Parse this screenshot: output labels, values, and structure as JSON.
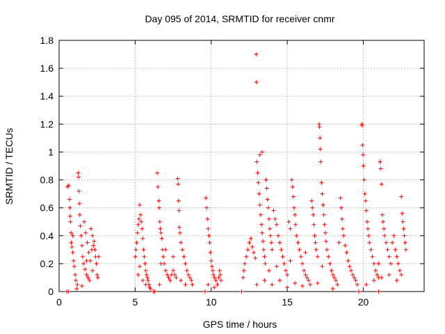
{
  "chart_data": {
    "type": "scatter",
    "title": "Day 095 of 2014, SRMTID for receiver cnmr",
    "xlabel": "GPS time / hours",
    "ylabel": "SRMTID / TECUs",
    "xlim": [
      0,
      24
    ],
    "ylim": [
      0,
      1.8
    ],
    "xticks": [
      0,
      5,
      10,
      15,
      20
    ],
    "xtick_labels": [
      "0",
      "5",
      "10",
      "15",
      "20"
    ],
    "yticks": [
      0,
      0.2,
      0.4,
      0.6,
      0.8,
      1,
      1.2,
      1.4,
      1.6,
      1.8
    ],
    "ytick_labels": [
      "0",
      "0.2",
      "0.4",
      "0.6",
      "0.8",
      "1",
      "1.2",
      "1.4",
      "1.6",
      "1.8"
    ],
    "grid": true,
    "marker": "plus",
    "series": [
      {
        "name": "SRMTID",
        "color": "#ff0000",
        "points": [
          [
            0.55,
            0.75
          ],
          [
            0.62,
            0.76
          ],
          [
            0.68,
            0.66
          ],
          [
            0.7,
            0.6
          ],
          [
            0.72,
            0.54
          ],
          [
            0.75,
            0.5
          ],
          [
            0.78,
            0.42
          ],
          [
            0.8,
            0.35
          ],
          [
            0.85,
            0.32
          ],
          [
            0.9,
            0.28
          ],
          [
            0.95,
            0.22
          ],
          [
            1.0,
            0.18
          ],
          [
            1.05,
            0.12
          ],
          [
            1.1,
            0.08
          ],
          [
            1.2,
            0.05
          ],
          [
            1.25,
            0.85
          ],
          [
            1.28,
            0.82
          ],
          [
            1.3,
            0.72
          ],
          [
            1.33,
            0.63
          ],
          [
            1.36,
            0.55
          ],
          [
            1.4,
            0.47
          ],
          [
            1.45,
            0.4
          ],
          [
            1.5,
            0.33
          ],
          [
            1.55,
            0.25
          ],
          [
            1.6,
            0.2
          ],
          [
            1.7,
            0.16
          ],
          [
            1.8,
            0.12
          ],
          [
            1.9,
            0.1
          ],
          [
            2.0,
            0.08
          ],
          [
            1.65,
            0.5
          ],
          [
            1.75,
            0.42
          ],
          [
            1.85,
            0.35
          ],
          [
            1.95,
            0.28
          ],
          [
            2.05,
            0.22
          ],
          [
            2.15,
            0.3
          ],
          [
            2.25,
            0.33
          ],
          [
            2.35,
            0.3
          ],
          [
            2.4,
            0.25
          ],
          [
            2.45,
            0.2
          ],
          [
            2.5,
            0.12
          ],
          [
            2.55,
            0.1
          ],
          [
            2.1,
            0.45
          ],
          [
            2.2,
            0.4
          ],
          [
            2.3,
            0.36
          ],
          [
            1.15,
            0.02
          ],
          [
            1.5,
            0.04
          ],
          [
            2.6,
            0.25
          ],
          [
            2.2,
            0.15
          ],
          [
            1.8,
            0.22
          ],
          [
            0.9,
            0.4
          ],
          [
            5.0,
            0.25
          ],
          [
            5.05,
            0.3
          ],
          [
            5.1,
            0.35
          ],
          [
            5.15,
            0.42
          ],
          [
            5.2,
            0.48
          ],
          [
            5.25,
            0.52
          ],
          [
            5.3,
            0.62
          ],
          [
            5.35,
            0.55
          ],
          [
            5.4,
            0.5
          ],
          [
            5.45,
            0.45
          ],
          [
            5.5,
            0.38
          ],
          [
            5.55,
            0.3
          ],
          [
            5.6,
            0.25
          ],
          [
            5.65,
            0.2
          ],
          [
            5.7,
            0.15
          ],
          [
            5.75,
            0.12
          ],
          [
            5.8,
            0.1
          ],
          [
            5.85,
            0.08
          ],
          [
            5.9,
            0.05
          ],
          [
            5.95,
            0.03
          ],
          [
            6.0,
            0.02
          ],
          [
            5.2,
            0.12
          ],
          [
            5.3,
            0.18
          ],
          [
            5.5,
            0.08
          ],
          [
            5.7,
            0.05
          ],
          [
            6.45,
            0.85
          ],
          [
            6.5,
            0.75
          ],
          [
            6.55,
            0.65
          ],
          [
            6.58,
            0.6
          ],
          [
            6.62,
            0.5
          ],
          [
            6.65,
            0.45
          ],
          [
            6.7,
            0.42
          ],
          [
            6.75,
            0.38
          ],
          [
            6.8,
            0.3
          ],
          [
            6.85,
            0.25
          ],
          [
            6.9,
            0.2
          ],
          [
            7.0,
            0.15
          ],
          [
            7.1,
            0.12
          ],
          [
            7.2,
            0.1
          ],
          [
            7.3,
            0.08
          ],
          [
            7.4,
            0.12
          ],
          [
            7.5,
            0.15
          ],
          [
            7.6,
            0.12
          ],
          [
            7.7,
            0.1
          ],
          [
            7.8,
            0.81
          ],
          [
            7.82,
            0.77
          ],
          [
            7.85,
            0.65
          ],
          [
            7.88,
            0.58
          ],
          [
            7.9,
            0.46
          ],
          [
            7.95,
            0.42
          ],
          [
            8.0,
            0.35
          ],
          [
            8.1,
            0.3
          ],
          [
            8.2,
            0.25
          ],
          [
            8.3,
            0.2
          ],
          [
            8.4,
            0.15
          ],
          [
            8.5,
            0.12
          ],
          [
            8.6,
            0.1
          ],
          [
            8.7,
            0.08
          ],
          [
            8.75,
            0.05
          ],
          [
            6.6,
            0.05
          ],
          [
            7.0,
            0.3
          ],
          [
            7.5,
            0.25
          ],
          [
            8.0,
            0.08
          ],
          [
            8.3,
            0.05
          ],
          [
            6.7,
            0.2
          ],
          [
            9.65,
            0.67
          ],
          [
            9.7,
            0.6
          ],
          [
            9.75,
            0.52
          ],
          [
            9.8,
            0.45
          ],
          [
            9.85,
            0.4
          ],
          [
            9.9,
            0.35
          ],
          [
            9.95,
            0.28
          ],
          [
            10.0,
            0.22
          ],
          [
            10.05,
            0.18
          ],
          [
            10.1,
            0.15
          ],
          [
            10.15,
            0.12
          ],
          [
            10.2,
            0.1
          ],
          [
            10.3,
            0.08
          ],
          [
            10.4,
            0.05
          ],
          [
            10.5,
            0.1
          ],
          [
            10.55,
            0.15
          ],
          [
            10.6,
            0.12
          ],
          [
            10.65,
            0.08
          ],
          [
            9.8,
            0.05
          ],
          [
            10.2,
            0.03
          ],
          [
            12.1,
            0.1
          ],
          [
            12.15,
            0.15
          ],
          [
            12.2,
            0.2
          ],
          [
            12.3,
            0.25
          ],
          [
            12.4,
            0.3
          ],
          [
            12.5,
            0.35
          ],
          [
            12.6,
            0.38
          ],
          [
            12.7,
            0.32
          ],
          [
            12.8,
            0.28
          ],
          [
            12.9,
            0.24
          ],
          [
            12.95,
            1.7
          ],
          [
            12.97,
            1.5
          ],
          [
            13.0,
            0.93
          ],
          [
            13.05,
            0.85
          ],
          [
            13.1,
            0.78
          ],
          [
            13.15,
            0.7
          ],
          [
            13.2,
            0.62
          ],
          [
            13.25,
            0.55
          ],
          [
            13.3,
            0.48
          ],
          [
            13.35,
            0.42
          ],
          [
            13.2,
            0.98
          ],
          [
            13.35,
            1.0
          ],
          [
            13.4,
            0.36
          ],
          [
            13.45,
            0.3
          ],
          [
            13.5,
            0.25
          ],
          [
            13.55,
            0.2
          ],
          [
            13.6,
            0.8
          ],
          [
            13.65,
            0.74
          ],
          [
            13.7,
            0.66
          ],
          [
            13.75,
            0.6
          ],
          [
            13.8,
            0.52
          ],
          [
            13.85,
            0.45
          ],
          [
            13.9,
            0.4
          ],
          [
            13.95,
            0.35
          ],
          [
            14.0,
            0.3
          ],
          [
            14.1,
            0.58
          ],
          [
            14.2,
            0.52
          ],
          [
            14.3,
            0.48
          ],
          [
            14.4,
            0.4
          ],
          [
            14.5,
            0.35
          ],
          [
            14.6,
            0.3
          ],
          [
            14.7,
            0.25
          ],
          [
            14.8,
            0.2
          ],
          [
            14.9,
            0.15
          ],
          [
            15.0,
            0.12
          ],
          [
            15.1,
            0.5
          ],
          [
            15.2,
            0.45
          ],
          [
            15.3,
            0.8
          ],
          [
            15.35,
            0.75
          ],
          [
            15.4,
            0.68
          ],
          [
            15.45,
            0.6
          ],
          [
            15.5,
            0.55
          ],
          [
            15.55,
            0.48
          ],
          [
            15.6,
            0.4
          ],
          [
            15.7,
            0.35
          ],
          [
            15.8,
            0.3
          ],
          [
            15.9,
            0.25
          ],
          [
            16.0,
            0.2
          ],
          [
            16.1,
            0.15
          ],
          [
            16.2,
            0.12
          ],
          [
            16.3,
            0.1
          ],
          [
            16.4,
            0.08
          ],
          [
            16.5,
            0.05
          ],
          [
            16.6,
            0.65
          ],
          [
            16.65,
            0.6
          ],
          [
            16.7,
            0.55
          ],
          [
            16.75,
            0.48
          ],
          [
            16.8,
            0.4
          ],
          [
            16.85,
            0.35
          ],
          [
            16.9,
            0.3
          ],
          [
            17.0,
            0.25
          ],
          [
            17.1,
            1.2
          ],
          [
            17.12,
            1.18
          ],
          [
            17.15,
            1.1
          ],
          [
            17.18,
            1.02
          ],
          [
            17.2,
            0.93
          ],
          [
            17.25,
            0.78
          ],
          [
            17.3,
            0.7
          ],
          [
            17.35,
            0.62
          ],
          [
            17.4,
            0.55
          ],
          [
            17.45,
            0.48
          ],
          [
            17.5,
            0.42
          ],
          [
            17.55,
            0.36
          ],
          [
            17.6,
            0.3
          ],
          [
            17.7,
            0.25
          ],
          [
            17.8,
            0.2
          ],
          [
            17.9,
            0.15
          ],
          [
            18.0,
            0.12
          ],
          [
            18.1,
            0.1
          ],
          [
            18.2,
            0.08
          ],
          [
            18.3,
            0.05
          ],
          [
            18.4,
            0.35
          ],
          [
            18.5,
            0.67
          ],
          [
            18.55,
            0.6
          ],
          [
            18.6,
            0.52
          ],
          [
            18.65,
            0.45
          ],
          [
            18.7,
            0.4
          ],
          [
            18.8,
            0.33
          ],
          [
            18.9,
            0.28
          ],
          [
            19.0,
            0.22
          ],
          [
            19.1,
            0.18
          ],
          [
            19.2,
            0.15
          ],
          [
            19.3,
            0.12
          ],
          [
            19.4,
            0.1
          ],
          [
            19.5,
            0.08
          ],
          [
            19.6,
            0.05
          ],
          [
            13.0,
            0.05
          ],
          [
            13.5,
            0.08
          ],
          [
            14.0,
            0.05
          ],
          [
            14.5,
            0.08
          ],
          [
            15.0,
            0.03
          ],
          [
            15.5,
            0.06
          ],
          [
            16.0,
            0.04
          ],
          [
            17.0,
            0.06
          ],
          [
            18.0,
            0.02
          ],
          [
            13.8,
            0.15
          ],
          [
            14.3,
            0.18
          ],
          [
            15.2,
            0.22
          ],
          [
            16.2,
            0.28
          ],
          [
            17.3,
            0.18
          ],
          [
            19.9,
            1.2
          ],
          [
            19.92,
            1.19
          ],
          [
            19.95,
            1.05
          ],
          [
            19.98,
            0.98
          ],
          [
            20.0,
            0.9
          ],
          [
            20.05,
            0.8
          ],
          [
            20.1,
            0.7
          ],
          [
            20.15,
            0.65
          ],
          [
            20.2,
            0.58
          ],
          [
            20.25,
            0.5
          ],
          [
            20.3,
            0.45
          ],
          [
            20.35,
            0.4
          ],
          [
            20.4,
            0.35
          ],
          [
            20.5,
            0.3
          ],
          [
            20.6,
            0.25
          ],
          [
            20.7,
            0.2
          ],
          [
            20.8,
            0.15
          ],
          [
            20.9,
            0.12
          ],
          [
            21.0,
            0.1
          ],
          [
            21.1,
            0.93
          ],
          [
            21.15,
            0.88
          ],
          [
            21.2,
            0.77
          ],
          [
            21.25,
            0.55
          ],
          [
            21.3,
            0.5
          ],
          [
            21.35,
            0.45
          ],
          [
            21.4,
            0.4
          ],
          [
            21.5,
            0.35
          ],
          [
            21.6,
            0.3
          ],
          [
            21.7,
            0.25
          ],
          [
            21.8,
            0.2
          ],
          [
            21.9,
            0.35
          ],
          [
            22.0,
            0.4
          ],
          [
            22.1,
            0.3
          ],
          [
            22.2,
            0.25
          ],
          [
            22.3,
            0.2
          ],
          [
            22.4,
            0.15
          ],
          [
            22.5,
            0.68
          ],
          [
            22.55,
            0.56
          ],
          [
            22.6,
            0.5
          ],
          [
            22.65,
            0.45
          ],
          [
            22.7,
            0.4
          ],
          [
            22.75,
            0.35
          ],
          [
            22.8,
            0.3
          ],
          [
            20.2,
            0.05
          ],
          [
            20.7,
            0.08
          ],
          [
            21.2,
            0.1
          ],
          [
            21.7,
            0.12
          ],
          [
            22.2,
            0.08
          ],
          [
            22.5,
            0.12
          ],
          [
            21.0,
            0.2
          ],
          [
            0.5,
            0.0
          ],
          [
            0.6,
            0.0
          ],
          [
            6.2,
            0.0
          ],
          [
            6.3,
            0.0
          ],
          [
            9.6,
            0.0
          ],
          [
            12.0,
            0.0
          ],
          [
            19.7,
            0.0
          ],
          [
            21.0,
            0.0
          ]
        ]
      }
    ]
  }
}
